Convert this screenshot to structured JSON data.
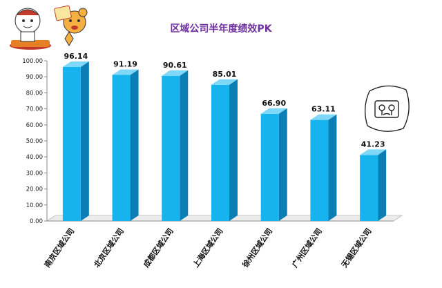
{
  "chart_data": {
    "type": "bar",
    "title": "区域公司半年度绩效PK",
    "categories": [
      "南京区域公司",
      "北京区域公司",
      "成都区域公司",
      "上海区域公司",
      "徐州区域公司",
      "广州区域公司",
      "无锡区域公司"
    ],
    "values": [
      96.14,
      91.19,
      90.61,
      85.01,
      66.9,
      63.11,
      41.23
    ],
    "value_labels": [
      "96.14",
      "91.19",
      "90.61",
      "85.01",
      "66.90",
      "63.11",
      "41.23"
    ],
    "y_ticks": [
      "0.00",
      "10.00",
      "20.00",
      "30.00",
      "40.00",
      "50.00",
      "60.00",
      "70.00",
      "80.00",
      "90.00",
      "100.00"
    ],
    "ylim": [
      0,
      100
    ],
    "xlabel": "",
    "ylabel": "",
    "grid": false,
    "legend": "none",
    "bar_color": "#17b3ee",
    "bar_side_color": "#0b7fb5",
    "bar_top_color": "#7fd8f8"
  },
  "decorations": {
    "top_left": "cartoon-characters",
    "right": "crying-face-doodle"
  }
}
